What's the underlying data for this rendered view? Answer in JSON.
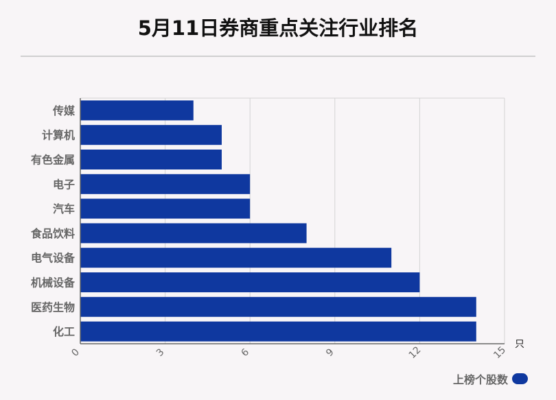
{
  "chart_data": {
    "type": "bar",
    "orientation": "horizontal",
    "title": "5月11日券商重点关注行业排名",
    "categories": [
      "传媒",
      "计算机",
      "有色金属",
      "电子",
      "汽车",
      "食品饮料",
      "电气设备",
      "机械设备",
      "医药生物",
      "化工"
    ],
    "series": [
      {
        "name": "上榜个股数",
        "values": [
          4,
          5,
          5,
          6,
          6,
          8,
          11,
          12,
          14,
          14
        ]
      }
    ],
    "x_ticks": [
      0,
      3,
      6,
      9,
      12,
      15
    ],
    "xlim": [
      0,
      15
    ],
    "xunit": "只",
    "grid": true,
    "legend_position": "bottom-right",
    "bar_color": "#0f389f"
  }
}
